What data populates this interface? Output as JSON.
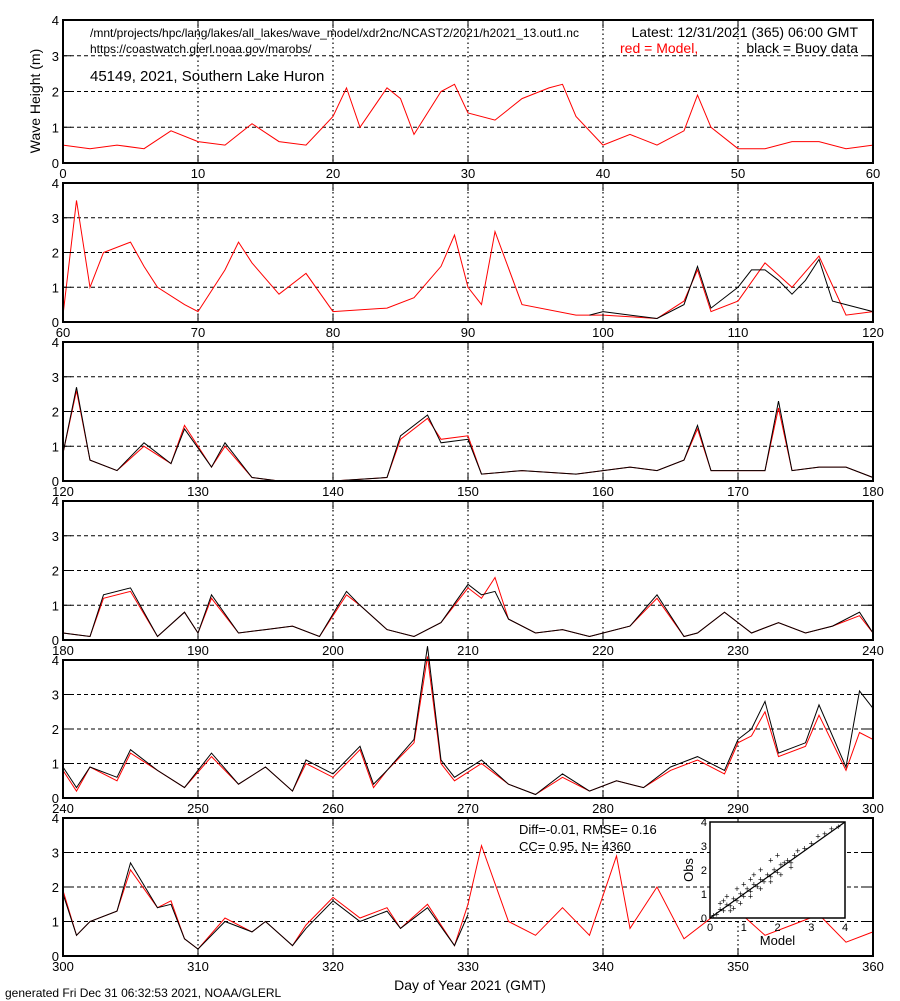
{
  "header": {
    "path": "/mnt/projects/hpc/lang/lakes/all_lakes/wave_model/xdr2nc/NCAST2/2021/h2021_13.out1.nc",
    "url": "https://coastwatch.glerl.noaa.gov/marobs/",
    "latest": "Latest: 12/31/2021 (365) 06:00 GMT",
    "legend_model": "red = Model,",
    "legend_buoy": "black = Buoy data",
    "station": "45149, 2021, Southern Lake Huron"
  },
  "footer": {
    "generated": "generated Fri Dec 31 06:32:53 2021, NOAA/GLERL"
  },
  "stats": {
    "line1": "Diff=-0.01,  RMSE= 0.16",
    "line2": "CC= 0.95,  N= 4360"
  },
  "colors": {
    "model": "#ff0000",
    "buoy": "#000000",
    "grid": "#000000"
  },
  "chart_data": [
    {
      "type": "line",
      "ylabel": "Wave Height (m)",
      "xlim": [
        0,
        60
      ],
      "ylim": [
        0,
        4
      ],
      "x_ticks": [
        "0",
        "10",
        "20",
        "30",
        "40",
        "50",
        "60"
      ],
      "y_ticks": [
        "0",
        "1",
        "2",
        "3",
        "4"
      ],
      "series": [
        {
          "key": "model",
          "x": [
            0,
            2,
            4,
            6,
            8,
            10,
            12,
            14,
            16,
            18,
            20,
            21,
            22,
            24,
            25,
            26,
            28,
            29,
            30,
            32,
            34,
            36,
            37,
            38,
            40,
            42,
            44,
            46,
            47,
            48,
            50,
            52,
            54,
            56,
            58,
            60
          ],
          "y": [
            0.5,
            0.4,
            0.5,
            0.4,
            0.9,
            0.6,
            0.5,
            1.1,
            0.6,
            0.5,
            1.3,
            2.1,
            1.0,
            2.1,
            1.8,
            0.8,
            2.0,
            2.2,
            1.4,
            1.2,
            1.8,
            2.1,
            2.2,
            1.3,
            0.5,
            0.8,
            0.5,
            0.9,
            1.9,
            1.0,
            0.4,
            0.4,
            0.6,
            0.6,
            0.4,
            0.5
          ]
        }
      ]
    },
    {
      "type": "line",
      "xlim": [
        60,
        120
      ],
      "ylim": [
        0,
        4
      ],
      "x_ticks": [
        "60",
        "70",
        "80",
        "90",
        "100",
        "110",
        "120"
      ],
      "y_ticks": [
        "0",
        "1",
        "2",
        "3",
        "4"
      ],
      "series": [
        {
          "key": "model",
          "x": [
            60,
            61,
            62,
            63,
            65,
            66,
            67,
            69,
            70,
            72,
            73,
            74,
            76,
            78,
            80,
            84,
            86,
            88,
            89,
            90,
            91,
            92,
            94,
            98,
            100,
            104,
            106,
            107,
            108,
            110,
            112,
            114,
            116,
            118,
            120
          ],
          "y": [
            0.2,
            3.5,
            1.0,
            2.0,
            2.3,
            1.6,
            1.0,
            0.5,
            0.3,
            1.5,
            2.3,
            1.7,
            0.8,
            1.4,
            0.3,
            0.4,
            0.7,
            1.6,
            2.5,
            1.0,
            0.5,
            2.6,
            0.5,
            0.2,
            0.2,
            0.1,
            0.6,
            1.5,
            0.3,
            0.6,
            1.7,
            1.0,
            1.9,
            0.2,
            0.3
          ]
        },
        {
          "key": "buoy",
          "x": [
            99,
            100,
            102,
            104,
            106,
            107,
            108,
            110,
            111,
            112,
            113,
            114,
            115,
            116,
            117,
            118,
            120
          ],
          "y": [
            0.2,
            0.3,
            0.2,
            0.1,
            0.5,
            1.6,
            0.4,
            1.0,
            1.5,
            1.5,
            1.2,
            0.8,
            1.2,
            1.8,
            0.6,
            0.5,
            0.3
          ]
        }
      ]
    },
    {
      "type": "line",
      "xlim": [
        120,
        180
      ],
      "ylim": [
        0,
        4
      ],
      "x_ticks": [
        "120",
        "130",
        "140",
        "150",
        "160",
        "170",
        "180"
      ],
      "y_ticks": [
        "0",
        "1",
        "2",
        "3",
        "4"
      ],
      "series": [
        {
          "key": "model",
          "x": [
            120,
            121,
            122,
            124,
            126,
            128,
            129,
            131,
            132,
            134,
            136,
            140,
            144,
            145,
            147,
            148,
            150,
            151,
            154,
            158,
            162,
            164,
            166,
            167,
            168,
            172,
            173,
            174,
            176,
            178,
            180
          ],
          "y": [
            0.8,
            2.6,
            0.6,
            0.3,
            1.0,
            0.5,
            1.6,
            0.4,
            1.0,
            0.1,
            0.0,
            0.0,
            0.1,
            1.2,
            1.8,
            1.2,
            1.3,
            0.2,
            0.3,
            0.2,
            0.4,
            0.3,
            0.6,
            1.5,
            0.3,
            0.3,
            2.1,
            0.3,
            0.4,
            0.4,
            0.1
          ]
        },
        {
          "key": "buoy",
          "x": [
            120,
            121,
            122,
            124,
            126,
            128,
            129,
            131,
            132,
            134,
            136,
            140,
            144,
            145,
            147,
            148,
            150,
            151,
            154,
            158,
            162,
            164,
            166,
            167,
            168,
            172,
            173,
            174,
            176,
            178,
            180
          ],
          "y": [
            0.8,
            2.7,
            0.6,
            0.3,
            1.1,
            0.5,
            1.5,
            0.4,
            1.1,
            0.1,
            0.0,
            0.0,
            0.1,
            1.3,
            1.9,
            1.1,
            1.2,
            0.2,
            0.3,
            0.2,
            0.4,
            0.3,
            0.6,
            1.6,
            0.3,
            0.3,
            2.3,
            0.3,
            0.4,
            0.4,
            0.1
          ]
        }
      ]
    },
    {
      "type": "line",
      "xlim": [
        180,
        240
      ],
      "ylim": [
        0,
        4
      ],
      "x_ticks": [
        "180",
        "190",
        "200",
        "210",
        "220",
        "230",
        "240"
      ],
      "y_ticks": [
        "0",
        "1",
        "2",
        "3",
        "4"
      ],
      "series": [
        {
          "key": "model",
          "x": [
            180,
            182,
            183,
            185,
            187,
            189,
            190,
            191,
            193,
            195,
            197,
            199,
            201,
            202,
            204,
            206,
            208,
            210,
            211,
            212,
            213,
            215,
            217,
            219,
            222,
            224,
            226,
            227,
            229,
            231,
            233,
            235,
            237,
            239,
            240
          ],
          "y": [
            0.2,
            0.1,
            1.2,
            1.4,
            0.1,
            0.8,
            0.2,
            1.2,
            0.2,
            0.3,
            0.4,
            0.1,
            1.3,
            1.0,
            0.3,
            0.1,
            0.5,
            1.5,
            1.2,
            1.8,
            0.6,
            0.2,
            0.3,
            0.1,
            0.4,
            1.2,
            0.1,
            0.2,
            0.8,
            0.2,
            0.5,
            0.2,
            0.4,
            0.7,
            0.2
          ]
        },
        {
          "key": "buoy",
          "x": [
            180,
            182,
            183,
            185,
            187,
            189,
            190,
            191,
            193,
            195,
            197,
            199,
            201,
            202,
            204,
            206,
            208,
            210,
            211,
            212,
            213,
            215,
            217,
            219,
            222,
            224,
            226,
            227,
            229,
            231,
            233,
            235,
            237,
            239,
            240
          ],
          "y": [
            0.2,
            0.1,
            1.3,
            1.5,
            0.1,
            0.8,
            0.2,
            1.3,
            0.2,
            0.3,
            0.4,
            0.1,
            1.4,
            1.0,
            0.3,
            0.1,
            0.5,
            1.6,
            1.3,
            1.4,
            0.6,
            0.2,
            0.3,
            0.1,
            0.4,
            1.3,
            0.1,
            0.2,
            0.8,
            0.2,
            0.5,
            0.2,
            0.4,
            0.8,
            0.2
          ]
        }
      ]
    },
    {
      "type": "line",
      "xlim": [
        240,
        300
      ],
      "ylim": [
        0,
        4
      ],
      "x_ticks": [
        "240",
        "250",
        "260",
        "270",
        "280",
        "290",
        "300"
      ],
      "y_ticks": [
        "0",
        "1",
        "2",
        "3",
        "4"
      ],
      "series": [
        {
          "key": "model",
          "x": [
            240,
            241,
            242,
            244,
            245,
            247,
            249,
            251,
            253,
            255,
            257,
            258,
            260,
            262,
            263,
            264,
            266,
            267,
            268,
            269,
            271,
            273,
            275,
            277,
            279,
            281,
            283,
            285,
            287,
            289,
            290,
            291,
            292,
            293,
            295,
            296,
            298,
            299,
            300
          ],
          "y": [
            0.8,
            0.2,
            0.9,
            0.5,
            1.3,
            0.8,
            0.3,
            1.2,
            0.4,
            0.9,
            0.2,
            1.0,
            0.6,
            1.4,
            0.3,
            0.8,
            1.6,
            4.1,
            1.0,
            0.5,
            1.0,
            0.4,
            0.1,
            0.6,
            0.2,
            0.5,
            0.3,
            0.8,
            1.1,
            0.7,
            1.6,
            1.8,
            2.5,
            1.2,
            1.5,
            2.4,
            0.8,
            1.9,
            1.7
          ]
        },
        {
          "key": "buoy",
          "x": [
            240,
            241,
            242,
            244,
            245,
            247,
            249,
            251,
            253,
            255,
            257,
            258,
            260,
            262,
            263,
            264,
            266,
            267,
            268,
            269,
            271,
            273,
            275,
            277,
            279,
            281,
            283,
            285,
            287,
            289,
            290,
            291,
            292,
            293,
            295,
            296,
            298,
            299,
            300
          ],
          "y": [
            0.9,
            0.3,
            0.9,
            0.6,
            1.4,
            0.8,
            0.3,
            1.3,
            0.4,
            0.9,
            0.2,
            1.1,
            0.7,
            1.5,
            0.4,
            0.8,
            1.7,
            4.4,
            1.1,
            0.6,
            1.1,
            0.4,
            0.1,
            0.7,
            0.2,
            0.5,
            0.3,
            0.9,
            1.2,
            0.8,
            1.7,
            2.0,
            2.8,
            1.3,
            1.6,
            2.7,
            0.9,
            3.1,
            2.6
          ]
        }
      ]
    },
    {
      "type": "line",
      "xlabel": "Day of Year 2021 (GMT)",
      "xlim": [
        300,
        360
      ],
      "ylim": [
        0,
        4
      ],
      "x_ticks": [
        "300",
        "310",
        "320",
        "330",
        "340",
        "350",
        "360"
      ],
      "y_ticks": [
        "0",
        "1",
        "2",
        "3",
        "4"
      ],
      "series": [
        {
          "key": "model",
          "x": [
            300,
            301,
            302,
            304,
            305,
            307,
            308,
            309,
            310,
            312,
            314,
            315,
            317,
            318,
            320,
            322,
            324,
            325,
            327,
            329,
            330,
            331,
            333,
            335,
            337,
            339,
            341,
            342,
            344,
            346,
            348,
            350,
            352,
            354,
            356,
            358,
            360
          ],
          "y": [
            1.9,
            0.6,
            1.0,
            1.3,
            2.5,
            1.4,
            1.6,
            0.5,
            0.2,
            1.1,
            0.7,
            1.0,
            0.3,
            0.9,
            1.7,
            1.1,
            1.4,
            0.8,
            1.5,
            0.3,
            1.5,
            3.2,
            1.0,
            0.6,
            1.4,
            0.6,
            2.9,
            0.8,
            2.0,
            0.5,
            1.1,
            1.3,
            0.6,
            0.9,
            1.2,
            0.4,
            0.7
          ]
        },
        {
          "key": "buoy",
          "x": [
            300,
            301,
            302,
            304,
            305,
            307,
            308,
            309,
            310,
            312,
            314,
            315,
            317,
            318,
            320,
            322,
            324,
            325,
            327,
            329,
            330
          ],
          "y": [
            1.8,
            0.6,
            1.0,
            1.3,
            2.7,
            1.4,
            1.5,
            0.5,
            0.2,
            1.0,
            0.7,
            1.0,
            0.3,
            0.8,
            1.6,
            1.0,
            1.3,
            0.8,
            1.4,
            0.3,
            1.2
          ]
        }
      ]
    },
    {
      "type": "scatter",
      "xlabel": "Model",
      "ylabel": "Obs",
      "xlim": [
        0,
        4
      ],
      "ylim": [
        0,
        4
      ],
      "x_ticks": [
        "0",
        "1",
        "2",
        "3",
        "4"
      ],
      "y_ticks": [
        "0",
        "1",
        "2",
        "3",
        "4"
      ],
      "points": [
        [
          0.1,
          0.1
        ],
        [
          0.2,
          0.15
        ],
        [
          0.3,
          0.35
        ],
        [
          0.4,
          0.3
        ],
        [
          0.5,
          0.55
        ],
        [
          0.6,
          0.5
        ],
        [
          0.7,
          0.8
        ],
        [
          0.8,
          0.7
        ],
        [
          0.9,
          1.0
        ],
        [
          1.0,
          0.9
        ],
        [
          1.1,
          1.2
        ],
        [
          1.2,
          1.1
        ],
        [
          1.3,
          1.4
        ],
        [
          1.4,
          1.3
        ],
        [
          1.5,
          1.6
        ],
        [
          1.6,
          1.5
        ],
        [
          1.7,
          1.8
        ],
        [
          1.8,
          1.7
        ],
        [
          1.9,
          2.0
        ],
        [
          2.0,
          1.9
        ],
        [
          2.1,
          2.2
        ],
        [
          2.2,
          2.3
        ],
        [
          2.3,
          2.4
        ],
        [
          2.4,
          2.3
        ],
        [
          2.5,
          2.6
        ],
        [
          2.6,
          2.8
        ],
        [
          2.8,
          2.9
        ],
        [
          3.0,
          3.1
        ],
        [
          3.2,
          3.4
        ],
        [
          3.4,
          3.5
        ],
        [
          3.6,
          3.7
        ],
        [
          3.8,
          3.8
        ],
        [
          0.3,
          0.6
        ],
        [
          0.5,
          0.9
        ],
        [
          0.8,
          1.2
        ],
        [
          1.0,
          1.4
        ],
        [
          1.3,
          1.8
        ],
        [
          1.5,
          2.0
        ],
        [
          1.8,
          2.4
        ],
        [
          2.0,
          2.6
        ],
        [
          0.6,
          0.3
        ],
        [
          0.9,
          0.6
        ],
        [
          1.2,
          0.9
        ],
        [
          1.5,
          1.2
        ],
        [
          1.8,
          1.5
        ],
        [
          2.1,
          1.8
        ],
        [
          2.4,
          2.1
        ],
        [
          1.2,
          1.6
        ],
        [
          0.7,
          0.4
        ],
        [
          0.4,
          0.7
        ]
      ],
      "fit_line": [
        [
          0,
          0
        ],
        [
          4,
          4
        ]
      ]
    }
  ]
}
